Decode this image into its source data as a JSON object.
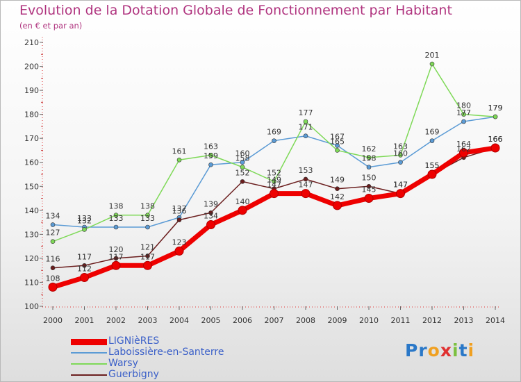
{
  "chart_data": {
    "type": "line",
    "title": "Evolution de la Dotation Globale de Fonctionnement par Habitant",
    "subtitle": "(en € et par an)",
    "x": [
      "2000",
      "2001",
      "2002",
      "2003",
      "2004",
      "2005",
      "2006",
      "2007",
      "2008",
      "2009",
      "2010",
      "2011",
      "2012",
      "2013",
      "2014"
    ],
    "ylim": [
      100,
      210
    ],
    "yticks": [
      100,
      110,
      120,
      130,
      140,
      150,
      160,
      170,
      180,
      190,
      200,
      210
    ],
    "grid": false,
    "legend_position": "bottom-left",
    "series": [
      {
        "name": "LIGNièRES",
        "color": "#ee0000",
        "values": [
          108,
          112,
          117,
          117,
          123,
          134,
          140,
          147,
          147,
          142,
          145,
          147,
          155,
          164,
          166
        ]
      },
      {
        "name": "Laboissière-en-Santerre",
        "color": "#5b9bd5",
        "values": [
          134,
          133,
          133,
          133,
          137,
          159,
          160,
          169,
          171,
          167,
          158,
          160,
          169,
          177,
          179
        ]
      },
      {
        "name": "Warsy",
        "color": "#7ed957",
        "values": [
          127,
          132,
          138,
          138,
          161,
          163,
          158,
          152,
          177,
          165,
          162,
          163,
          201,
          180,
          179
        ]
      },
      {
        "name": "Guerbigny",
        "color": "#6b1e1e",
        "values": [
          116,
          117,
          120,
          121,
          136,
          139,
          152,
          149,
          153,
          149,
          150,
          147,
          155,
          162,
          166
        ]
      }
    ]
  },
  "logo": {
    "text": "Proxiti",
    "letters": [
      "P",
      "r",
      "o",
      "x",
      "i",
      "t",
      "i"
    ],
    "colors": [
      "#2a78c8",
      "#2a78c8",
      "#f0a020",
      "#e03030",
      "#7cc040",
      "#2a78c8",
      "#f0a020"
    ]
  }
}
